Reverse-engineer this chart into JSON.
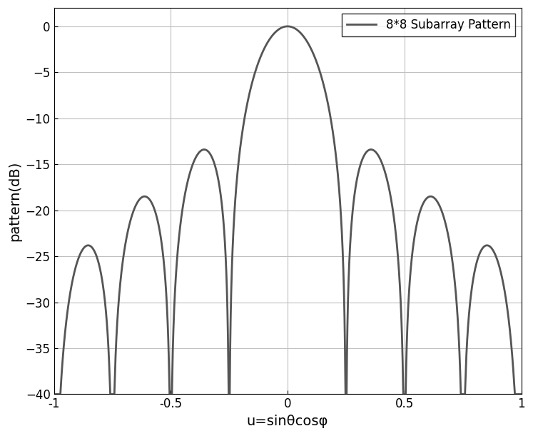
{
  "xlabel": "u=sinθcosφ",
  "ylabel": "pattern(dB)",
  "legend_label": "8*8 Subarray Pattern",
  "xlim": [
    -1,
    1
  ],
  "ylim": [
    -40,
    2
  ],
  "yticks": [
    0,
    -5,
    -10,
    -15,
    -20,
    -25,
    -30,
    -35,
    -40
  ],
  "xticks": [
    -1,
    -0.5,
    0,
    0.5,
    1
  ],
  "line_color": "#555555",
  "line_width": 2.0,
  "bg_color": "#ffffff",
  "grid_color": "#c0c0c0",
  "N": 8,
  "d_over_lambda": 0.5,
  "element_d": 0.5,
  "u_steer": 0.0,
  "figsize": [
    7.47,
    6.11
  ],
  "dpi": 100
}
